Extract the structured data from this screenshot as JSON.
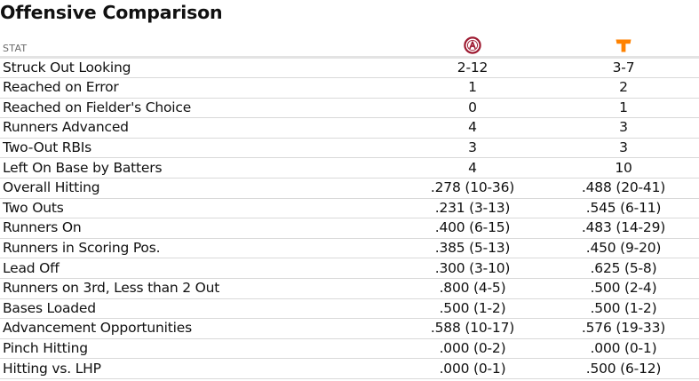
{
  "page": {
    "title": "Offensive Comparison"
  },
  "table": {
    "header_stat": "STAT",
    "teams": [
      {
        "logo_icon": "alabama-logo-icon",
        "color": "#9e1b32"
      },
      {
        "logo_icon": "tennessee-logo-icon",
        "color": "#ff8200"
      }
    ],
    "rows": [
      {
        "stat": "Struck Out Looking",
        "team1": "2-12",
        "team2": "3-7"
      },
      {
        "stat": "Reached on Error",
        "team1": "1",
        "team2": "2"
      },
      {
        "stat": "Reached on Fielder's Choice",
        "team1": "0",
        "team2": "1"
      },
      {
        "stat": "Runners Advanced",
        "team1": "4",
        "team2": "3"
      },
      {
        "stat": "Two-Out RBIs",
        "team1": "3",
        "team2": "3"
      },
      {
        "stat": "Left On Base by Batters",
        "team1": "4",
        "team2": "10"
      },
      {
        "stat": "Overall Hitting",
        "team1": ".278 (10-36)",
        "team2": ".488 (20-41)"
      },
      {
        "stat": "Two Outs",
        "team1": ".231 (3-13)",
        "team2": ".545 (6-11)"
      },
      {
        "stat": "Runners On",
        "team1": ".400 (6-15)",
        "team2": ".483 (14-29)"
      },
      {
        "stat": "Runners in Scoring Pos.",
        "team1": ".385 (5-13)",
        "team2": ".450 (9-20)"
      },
      {
        "stat": "Lead Off",
        "team1": ".300 (3-10)",
        "team2": ".625 (5-8)"
      },
      {
        "stat": "Runners on 3rd, Less than 2 Out",
        "team1": ".800 (4-5)",
        "team2": ".500 (2-4)"
      },
      {
        "stat": "Bases Loaded",
        "team1": ".500 (1-2)",
        "team2": ".500 (1-2)"
      },
      {
        "stat": "Advancement Opportunities",
        "team1": ".588 (10-17)",
        "team2": ".576 (19-33)"
      },
      {
        "stat": "Pinch Hitting",
        "team1": ".000 (0-2)",
        "team2": ".000 (0-1)"
      },
      {
        "stat": "Hitting vs. LHP",
        "team1": ".000 (0-1)",
        "team2": ".500 (6-12)"
      }
    ]
  }
}
